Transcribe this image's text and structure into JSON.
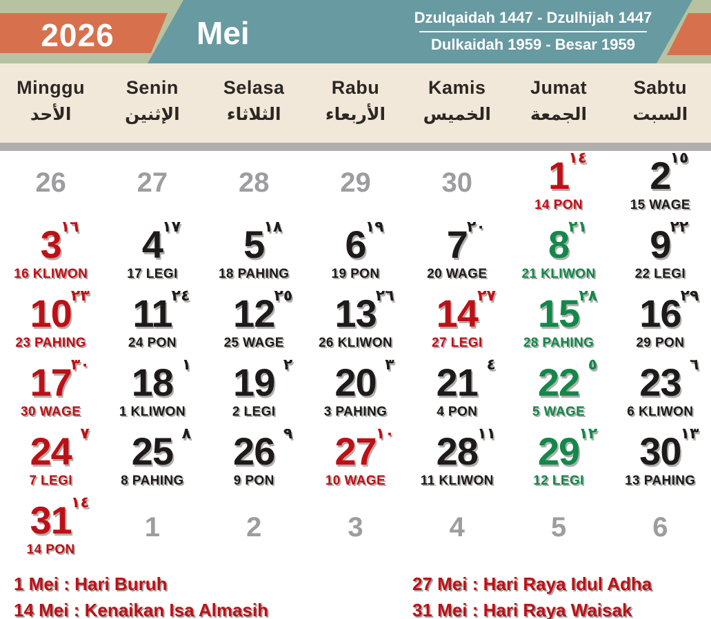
{
  "header": {
    "year": "2026",
    "month": "Mei",
    "hijri_range": "Dzulqaidah 1447 - Dzulhijah 1447",
    "javanese_range": "Dulkaidah 1959 - Besar 1959"
  },
  "colors": {
    "sage": "#b7c2a0",
    "orange": "#d7714d",
    "teal": "#689aa1",
    "cream": "#f2e8d9",
    "graybar": "#b1aeaf",
    "red": "#bd1016",
    "green": "#12884a",
    "black": "#1e1a1b",
    "graydate": "#9d9c9e"
  },
  "weekdays": [
    {
      "name": "Minggu",
      "arabic": "الأحد"
    },
    {
      "name": "Senin",
      "arabic": "الإثنين"
    },
    {
      "name": "Selasa",
      "arabic": "الثلاثاء"
    },
    {
      "name": "Rabu",
      "arabic": "الأربعاء"
    },
    {
      "name": "Kamis",
      "arabic": "الخميس"
    },
    {
      "name": "Jumat",
      "arabic": "الجمعة"
    },
    {
      "name": "Sabtu",
      "arabic": "السبت"
    }
  ],
  "weeks": [
    [
      {
        "day": "26",
        "type": "adjacent"
      },
      {
        "day": "27",
        "type": "adjacent"
      },
      {
        "day": "28",
        "type": "adjacent"
      },
      {
        "day": "29",
        "type": "adjacent"
      },
      {
        "day": "30",
        "type": "adjacent"
      },
      {
        "day": "1",
        "type": "current",
        "color": "red",
        "sup": "١٤",
        "sub": "14 PON"
      },
      {
        "day": "2",
        "type": "current",
        "color": "black",
        "sup": "١٥",
        "sub": "15 WAGE"
      }
    ],
    [
      {
        "day": "3",
        "type": "current",
        "color": "red",
        "sup": "١٦",
        "sub": "16 KLIWON"
      },
      {
        "day": "4",
        "type": "current",
        "color": "black",
        "sup": "١٧",
        "sub": "17 LEGI"
      },
      {
        "day": "5",
        "type": "current",
        "color": "black",
        "sup": "١٨",
        "sub": "18 PAHING"
      },
      {
        "day": "6",
        "type": "current",
        "color": "black",
        "sup": "١٩",
        "sub": "19 PON"
      },
      {
        "day": "7",
        "type": "current",
        "color": "black",
        "sup": "٢٠",
        "sub": "20 WAGE"
      },
      {
        "day": "8",
        "type": "current",
        "color": "green",
        "sup": "٢١",
        "sub": "21 KLIWON"
      },
      {
        "day": "9",
        "type": "current",
        "color": "black",
        "sup": "٢٢",
        "sub": "22 LEGI"
      }
    ],
    [
      {
        "day": "10",
        "type": "current",
        "color": "red",
        "sup": "٢٣",
        "sub": "23 PAHING"
      },
      {
        "day": "11",
        "type": "current",
        "color": "black",
        "sup": "٢٤",
        "sub": "24 PON"
      },
      {
        "day": "12",
        "type": "current",
        "color": "black",
        "sup": "٢٥",
        "sub": "25 WAGE"
      },
      {
        "day": "13",
        "type": "current",
        "color": "black",
        "sup": "٢٦",
        "sub": "26 KLIWON"
      },
      {
        "day": "14",
        "type": "current",
        "color": "red",
        "sup": "٢٧",
        "sub": "27 LEGI"
      },
      {
        "day": "15",
        "type": "current",
        "color": "green",
        "sup": "٢٨",
        "sub": "28 PAHING"
      },
      {
        "day": "16",
        "type": "current",
        "color": "black",
        "sup": "٢٩",
        "sub": "29 PON"
      }
    ],
    [
      {
        "day": "17",
        "type": "current",
        "color": "red",
        "sup": "٣٠",
        "sub": "30 WAGE"
      },
      {
        "day": "18",
        "type": "current",
        "color": "black",
        "sup": "١",
        "sub": "1 KLIWON"
      },
      {
        "day": "19",
        "type": "current",
        "color": "black",
        "sup": "٢",
        "sub": "2 LEGI"
      },
      {
        "day": "20",
        "type": "current",
        "color": "black",
        "sup": "٣",
        "sub": "3 PAHING"
      },
      {
        "day": "21",
        "type": "current",
        "color": "black",
        "sup": "٤",
        "sub": "4 PON"
      },
      {
        "day": "22",
        "type": "current",
        "color": "green",
        "sup": "٥",
        "sub": "5 WAGE"
      },
      {
        "day": "23",
        "type": "current",
        "color": "black",
        "sup": "٦",
        "sub": "6 KLIWON"
      }
    ],
    [
      {
        "day": "24",
        "type": "current",
        "color": "red",
        "sup": "٧",
        "sub": "7 LEGI"
      },
      {
        "day": "25",
        "type": "current",
        "color": "black",
        "sup": "٨",
        "sub": "8 PAHING"
      },
      {
        "day": "26",
        "type": "current",
        "color": "black",
        "sup": "٩",
        "sub": "9 PON"
      },
      {
        "day": "27",
        "type": "current",
        "color": "red",
        "sup": "١٠",
        "sub": "10 WAGE"
      },
      {
        "day": "28",
        "type": "current",
        "color": "black",
        "sup": "١١",
        "sub": "11 KLIWON"
      },
      {
        "day": "29",
        "type": "current",
        "color": "green",
        "sup": "١٢",
        "sub": "12 LEGI"
      },
      {
        "day": "30",
        "type": "current",
        "color": "black",
        "sup": "١٣",
        "sub": "13 PAHING"
      }
    ],
    [
      {
        "day": "31",
        "type": "current",
        "color": "red",
        "sup": "١٤",
        "sub": "14 PON"
      },
      {
        "day": "1",
        "type": "adjacent"
      },
      {
        "day": "2",
        "type": "adjacent"
      },
      {
        "day": "3",
        "type": "adjacent"
      },
      {
        "day": "4",
        "type": "adjacent"
      },
      {
        "day": "5",
        "type": "adjacent"
      },
      {
        "day": "6",
        "type": "adjacent"
      }
    ]
  ],
  "holidays": {
    "left": [
      "1 Mei : Hari Buruh",
      "14 Mei : Kenaikan Isa Almasih"
    ],
    "right": [
      "27 Mei : Hari Raya Idul Adha",
      "31 Mei : Hari Raya Waisak"
    ]
  }
}
